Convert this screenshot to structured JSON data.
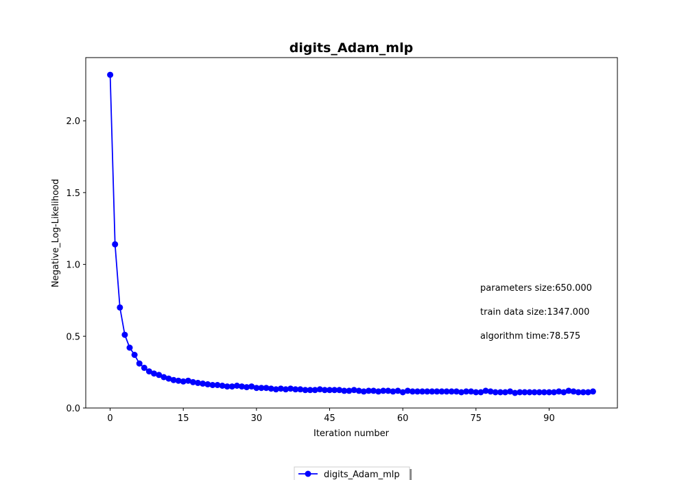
{
  "chart_data": {
    "type": "line",
    "title": "digits_Adam_mlp",
    "xlabel": "Iteration number",
    "ylabel": "Negative_Log-Likelihood",
    "xlim": [
      -5,
      104
    ],
    "ylim": [
      0,
      2.44
    ],
    "xticks": [
      0,
      15,
      30,
      45,
      60,
      75,
      90
    ],
    "yticks": [
      0.0,
      0.5,
      1.0,
      1.5,
      2.0
    ],
    "ytick_labels": [
      "0.0",
      "0.5",
      "1.0",
      "1.5",
      "2.0"
    ],
    "grid": false,
    "legend_position": "bottom-center",
    "series": [
      {
        "name": "digits_Adam_mlp",
        "color": "#0000ff",
        "marker": "circle",
        "x": [
          0,
          1,
          2,
          3,
          4,
          5,
          6,
          7,
          8,
          9,
          10,
          11,
          12,
          13,
          14,
          15,
          16,
          17,
          18,
          19,
          20,
          21,
          22,
          23,
          24,
          25,
          26,
          27,
          28,
          29,
          30,
          31,
          32,
          33,
          34,
          35,
          36,
          37,
          38,
          39,
          40,
          41,
          42,
          43,
          44,
          45,
          46,
          47,
          48,
          49,
          50,
          51,
          52,
          53,
          54,
          55,
          56,
          57,
          58,
          59,
          60,
          61,
          62,
          63,
          64,
          65,
          66,
          67,
          68,
          69,
          70,
          71,
          72,
          73,
          74,
          75,
          76,
          77,
          78,
          79,
          80,
          81,
          82,
          83,
          84,
          85,
          86,
          87,
          88,
          89,
          90,
          91,
          92,
          93,
          94,
          95,
          96,
          97,
          98,
          99
        ],
        "y": [
          2.32,
          1.14,
          0.7,
          0.51,
          0.42,
          0.37,
          0.31,
          0.28,
          0.255,
          0.24,
          0.23,
          0.215,
          0.205,
          0.195,
          0.19,
          0.185,
          0.19,
          0.18,
          0.175,
          0.17,
          0.165,
          0.16,
          0.16,
          0.155,
          0.15,
          0.15,
          0.155,
          0.15,
          0.145,
          0.15,
          0.14,
          0.14,
          0.14,
          0.135,
          0.13,
          0.135,
          0.13,
          0.135,
          0.13,
          0.13,
          0.125,
          0.125,
          0.125,
          0.13,
          0.125,
          0.125,
          0.125,
          0.125,
          0.12,
          0.12,
          0.125,
          0.12,
          0.115,
          0.12,
          0.12,
          0.115,
          0.12,
          0.12,
          0.115,
          0.12,
          0.11,
          0.12,
          0.115,
          0.115,
          0.115,
          0.115,
          0.115,
          0.115,
          0.115,
          0.115,
          0.115,
          0.115,
          0.11,
          0.115,
          0.115,
          0.11,
          0.11,
          0.12,
          0.115,
          0.11,
          0.11,
          0.11,
          0.115,
          0.105,
          0.11,
          0.11,
          0.11,
          0.11,
          0.11,
          0.11,
          0.11,
          0.11,
          0.115,
          0.11,
          0.12,
          0.115,
          0.11,
          0.11,
          0.11,
          0.115
        ]
      }
    ],
    "annotations": [
      "parameters size:650.000",
      "train data size:1347.000",
      "algorithm time:78.575"
    ]
  }
}
